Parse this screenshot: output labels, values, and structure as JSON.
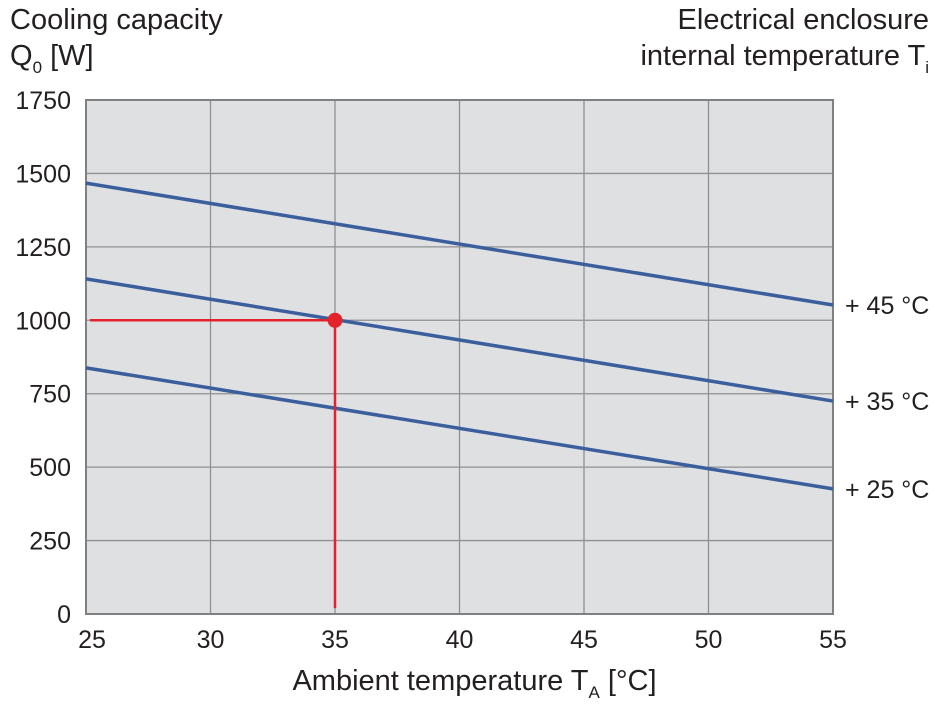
{
  "chart_data": {
    "type": "line",
    "title": "",
    "ylabel": {
      "text": "Cooling capacity",
      "line2": "Q",
      "sub": "0",
      "unit": " [W]"
    },
    "right_label": {
      "line1": "Electrical enclosure",
      "line2": "internal temperature T",
      "sub": "i"
    },
    "xlabel": {
      "text": "Ambient temperature T",
      "sub": "A",
      "unit": " [°C]"
    },
    "xlim": [
      25,
      55
    ],
    "ylim": [
      0,
      1750
    ],
    "xticks": [
      25,
      30,
      35,
      40,
      45,
      50,
      55
    ],
    "yticks": [
      0,
      250,
      500,
      750,
      1000,
      1250,
      1500,
      1750
    ],
    "grid": true,
    "colors": {
      "plot_bg": "#dfe0e2",
      "grid": "#8f9092",
      "series": "#3a5f9c",
      "marker": "#e3232b"
    },
    "series": [
      {
        "name": "+ 45 °C",
        "x": [
          25,
          55
        ],
        "y": [
          1467,
          1052
        ]
      },
      {
        "name": "+ 35 °C",
        "x": [
          25,
          55
        ],
        "y": [
          1141,
          725
        ]
      },
      {
        "name": "+ 25 °C",
        "x": [
          25,
          55
        ],
        "y": [
          838,
          426
        ]
      }
    ],
    "marker": {
      "x": 35,
      "y": 1000,
      "guide_from_x": 25,
      "guide_to_y": 20
    }
  }
}
